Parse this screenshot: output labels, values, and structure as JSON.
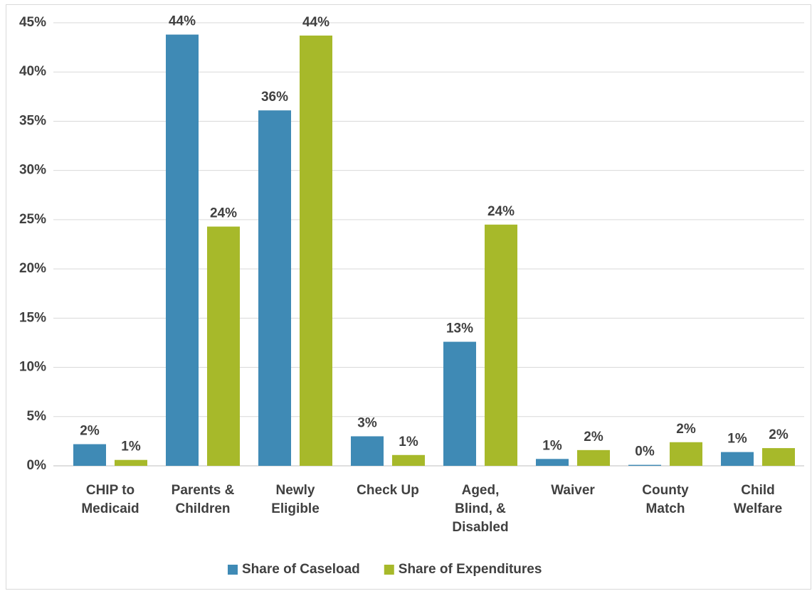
{
  "chart_data": {
    "type": "bar",
    "categories": [
      "CHIP to\nMedicaid",
      "Parents &\nChildren",
      "Newly\nEligible",
      "Check Up",
      "Aged,\nBlind, &\nDisabled",
      "Waiver",
      "County\nMatch",
      "Child\nWelfare"
    ],
    "series": [
      {
        "name": "Share of Caseload",
        "color": "#3f8ab5",
        "values": [
          2.2,
          43.8,
          36.1,
          3.0,
          12.6,
          0.7,
          0.1,
          1.4
        ],
        "value_labels": [
          "2%",
          "44%",
          "36%",
          "3%",
          "13%",
          "1%",
          "0%",
          "1%"
        ]
      },
      {
        "name": "Share of Expenditures",
        "color": "#a7b92a",
        "values": [
          0.6,
          24.3,
          43.7,
          1.1,
          24.5,
          1.6,
          2.4,
          1.8
        ],
        "value_labels": [
          "1%",
          "24%",
          "44%",
          "1%",
          "24%",
          "2%",
          "2%",
          "2%"
        ]
      }
    ],
    "ylim": [
      0,
      45
    ],
    "yticks": [
      {
        "value": 0,
        "label": "0%"
      },
      {
        "value": 5,
        "label": "5%"
      },
      {
        "value": 10,
        "label": "10%"
      },
      {
        "value": 15,
        "label": "15%"
      },
      {
        "value": 20,
        "label": "20%"
      },
      {
        "value": 25,
        "label": "25%"
      },
      {
        "value": 30,
        "label": "30%"
      },
      {
        "value": 35,
        "label": "35%"
      },
      {
        "value": 40,
        "label": "40%"
      },
      {
        "value": 45,
        "label": "45%"
      }
    ],
    "grid": true,
    "legend": "bottom"
  }
}
